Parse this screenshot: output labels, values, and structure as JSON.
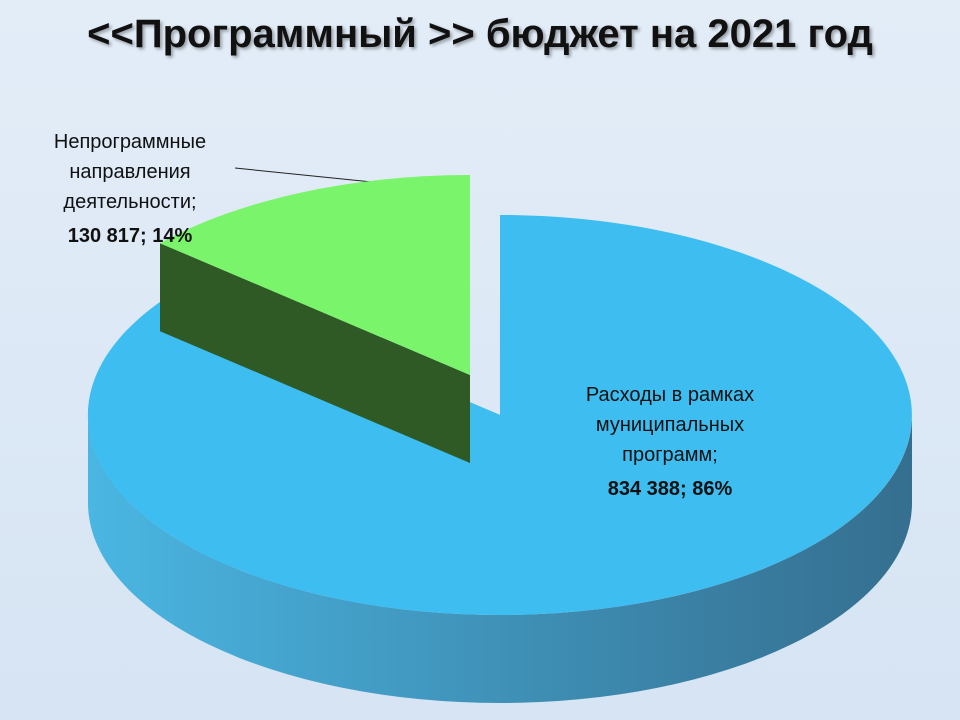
{
  "chart_data": {
    "type": "pie",
    "title": "<<Программный >> бюджет на 2021 год",
    "categories": [
      "Расходы в рамках муниципальных программ;",
      "Непрограммные направления деятельности;"
    ],
    "values": [
      834388,
      130817
    ],
    "value_labels": [
      "834 388; 86%",
      "130 817; 14%"
    ],
    "colors": [
      "#3dbdf0",
      "#7af46a"
    ]
  }
}
